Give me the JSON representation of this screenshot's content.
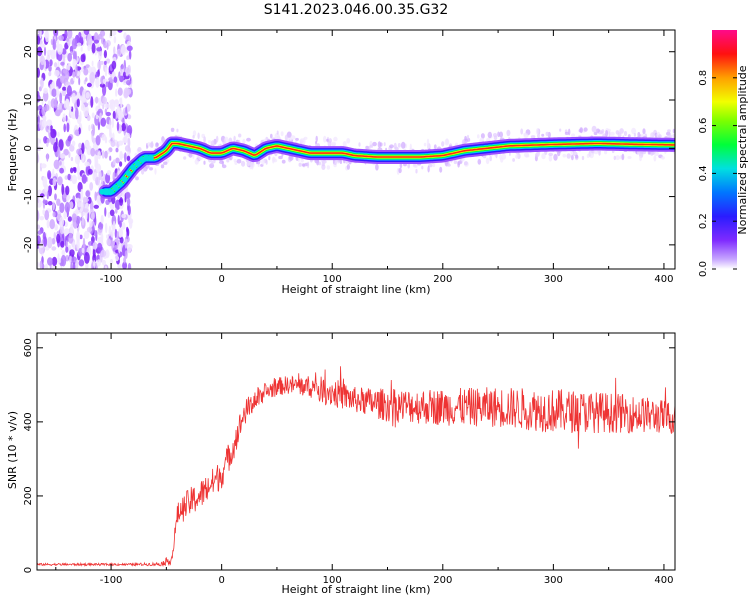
{
  "title": "S141.2023.046.00.35.G32",
  "colorbar": {
    "label": "Normalized spectral amplitude",
    "ticks": [
      "0.0",
      "0.2",
      "0.4",
      "0.6",
      "0.8"
    ],
    "tick_values": [
      0.0,
      0.2,
      0.4,
      0.6,
      0.8
    ]
  },
  "chart_data": [
    {
      "type": "heatmap",
      "xlabel": "Height of straight line (km)",
      "ylabel": "Frequency (Hz)",
      "xlim": [
        -167,
        410
      ],
      "ylim": [
        -25,
        24.5
      ],
      "xticks": [
        -100,
        0,
        100,
        200,
        300,
        400
      ],
      "yticks": [
        -20,
        -10,
        0,
        10,
        20
      ],
      "value_range": [
        0,
        1
      ],
      "colormap": "rainbow (purple-blue-cyan-green-yellow-red-magenta)",
      "grid": false,
      "ridge": {
        "description": "peak frequency track",
        "x": [
          -100,
          -90,
          -80,
          -70,
          -60,
          -50,
          -45,
          -40,
          -30,
          -20,
          -10,
          0,
          10,
          20,
          30,
          40,
          50,
          60,
          70,
          80,
          100,
          110,
          120,
          140,
          160,
          180,
          200,
          220,
          240,
          260,
          300,
          340,
          380,
          410
        ],
        "y": [
          -9,
          -7,
          -4,
          -2,
          -2,
          -0.5,
          1,
          1,
          0.5,
          0,
          -1,
          -1,
          0,
          -0.5,
          -1.5,
          0,
          0.5,
          0,
          -0.5,
          -1,
          -1,
          -1,
          -1.5,
          -1.8,
          -1.8,
          -1.8,
          -1.5,
          -0.5,
          0,
          0.5,
          0.8,
          1,
          0.8,
          0.7
        ]
      }
    },
    {
      "type": "line",
      "xlabel": "Height of straight line (km)",
      "ylabel": "SNR (10 * v/v)",
      "xlim": [
        -167,
        410
      ],
      "ylim": [
        0,
        640
      ],
      "xticks": [
        -100,
        0,
        100,
        200,
        300,
        400
      ],
      "yticks": [
        0,
        200,
        400,
        600
      ],
      "color": "#ee3333",
      "grid": false,
      "series": [
        {
          "x": [
            -167,
            -140,
            -110,
            -80,
            -55,
            -45,
            -40,
            -30,
            -20,
            -10,
            0,
            10,
            20,
            30,
            40,
            50,
            60,
            80,
            100,
            120,
            150,
            200,
            250,
            300,
            350,
            380,
            410
          ],
          "values": [
            15,
            15,
            15,
            15,
            16,
            30,
            150,
            180,
            200,
            230,
            260,
            330,
            420,
            460,
            480,
            495,
            500,
            495,
            480,
            460,
            445,
            440,
            440,
            430,
            425,
            420,
            410
          ],
          "noise_amplitude": [
            3,
            3,
            3,
            3,
            5,
            15,
            30,
            40,
            40,
            40,
            40,
            40,
            35,
            30,
            25,
            25,
            25,
            30,
            40,
            35,
            45,
            50,
            55,
            60,
            55,
            50,
            45
          ]
        }
      ]
    }
  ]
}
